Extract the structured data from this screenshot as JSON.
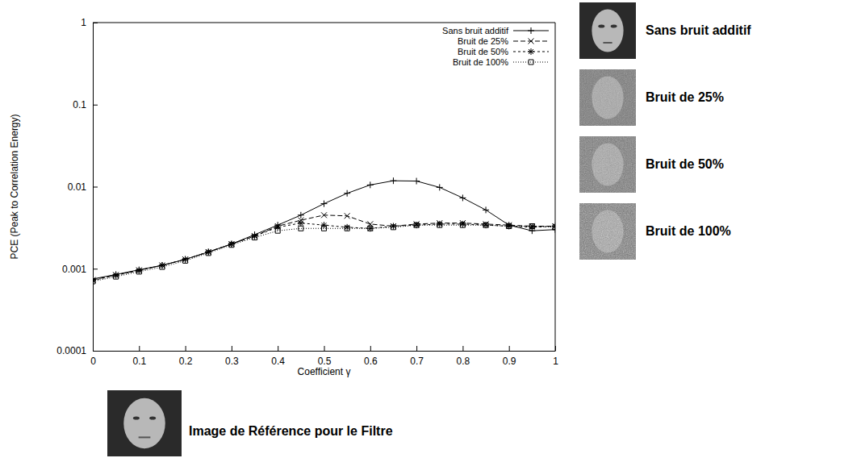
{
  "chart_data": {
    "type": "line",
    "xlabel": "Coefficient γ",
    "ylabel": "PCE (Peak to Correlation Energy)",
    "x": [
      0,
      0.05,
      0.1,
      0.15,
      0.2,
      0.25,
      0.3,
      0.35,
      0.4,
      0.45,
      0.5,
      0.55,
      0.6,
      0.65,
      0.7,
      0.75,
      0.8,
      0.85,
      0.9,
      0.95,
      1
    ],
    "series": [
      {
        "name": "Sans bruit additif",
        "color": "#000000",
        "marker": "plus",
        "line_style": "solid",
        "values": [
          0.00075,
          0.00085,
          0.00097,
          0.0011,
          0.0013,
          0.0016,
          0.002,
          0.0026,
          0.0034,
          0.0045,
          0.0062,
          0.0083,
          0.0105,
          0.0118,
          0.0117,
          0.0098,
          0.0073,
          0.0052,
          0.0034,
          0.0029,
          0.003
        ]
      },
      {
        "name": "Bruit de 25%",
        "color": "#000000",
        "marker": "cross",
        "line_style": "dashed",
        "values": [
          0.00073,
          0.00084,
          0.00096,
          0.0011,
          0.0013,
          0.0016,
          0.002,
          0.0025,
          0.0033,
          0.0039,
          0.0045,
          0.0044,
          0.0035,
          0.0033,
          0.0035,
          0.0036,
          0.0036,
          0.0035,
          0.0034,
          0.0033,
          0.0033
        ]
      },
      {
        "name": "Bruit de 50%",
        "color": "#000000",
        "marker": "star",
        "line_style": "dash-dot",
        "values": [
          0.00072,
          0.00083,
          0.00095,
          0.0011,
          0.0013,
          0.0016,
          0.002,
          0.0025,
          0.0032,
          0.0036,
          0.0034,
          0.0032,
          0.0031,
          0.0033,
          0.0034,
          0.0035,
          0.0035,
          0.0034,
          0.0033,
          0.0032,
          0.0033
        ]
      },
      {
        "name": "Bruit de 100%",
        "color": "#000000",
        "marker": "square",
        "line_style": "dotted",
        "values": [
          0.0007,
          0.0008,
          0.00092,
          0.00105,
          0.00125,
          0.00155,
          0.00195,
          0.0024,
          0.0029,
          0.0031,
          0.0031,
          0.0031,
          0.0031,
          0.0032,
          0.0034,
          0.0034,
          0.0034,
          0.0034,
          0.0033,
          0.0033,
          0.0032
        ]
      }
    ],
    "xlim": [
      0,
      1
    ],
    "ylim": [
      0.0001,
      1
    ],
    "xticks": [
      0,
      0.1,
      0.2,
      0.3,
      0.4,
      0.5,
      0.6,
      0.7,
      0.8,
      0.9,
      1
    ],
    "yticks": [
      0.0001,
      0.001,
      0.01,
      0.1,
      1
    ],
    "log": "y",
    "grid": false,
    "legend": "upper right"
  },
  "image_captions": {
    "samples": [
      "Sans bruit additif",
      "Bruit de 25%",
      "Bruit de 50%",
      "Bruit de 100%"
    ],
    "reference": "Image de Référence pour le Filtre"
  }
}
